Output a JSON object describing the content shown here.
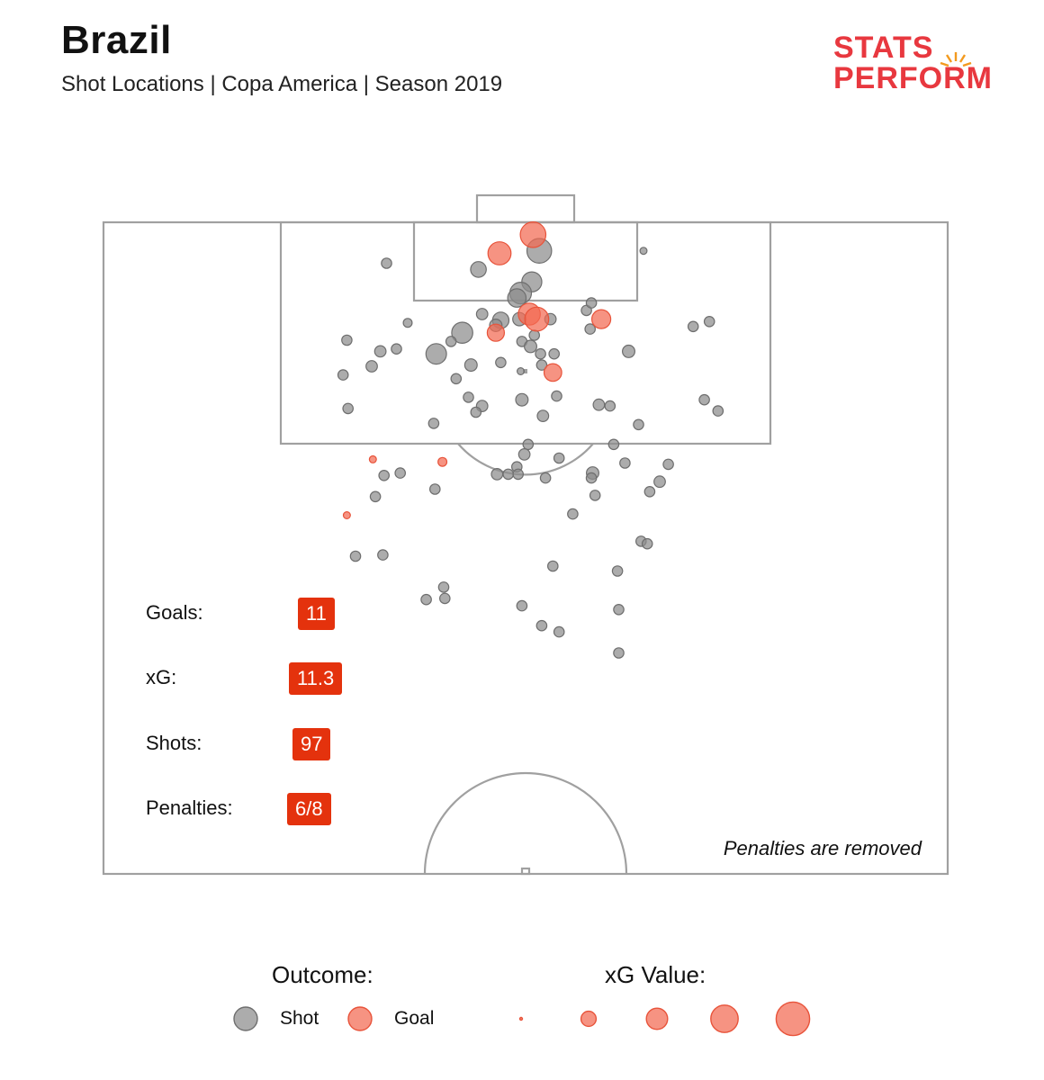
{
  "header": {
    "title": "Brazil",
    "subtitle": "Shot Locations | Copa America | Season 2019"
  },
  "logo": {
    "line1": "STATS",
    "line2": "PERFORM",
    "color": "#e8383f",
    "accent": "#f39a1e"
  },
  "stats": {
    "goals_label": "Goals:",
    "goals_value": "11",
    "xg_label": "xG:",
    "xg_value": "11.3",
    "shots_label": "Shots:",
    "shots_value": "97",
    "penalties_label": "Penalties:",
    "penalties_value": "6/8",
    "badge_color": "#e4320d"
  },
  "note": "Penalties are removed",
  "legend": {
    "outcome_title": "Outcome:",
    "shot_label": "Shot",
    "goal_label": "Goal",
    "xg_title": "xG Value:",
    "xg_sizes": [
      0.01,
      0.1,
      0.2,
      0.35,
      0.5
    ]
  },
  "colors": {
    "shot": "#8c8c8c",
    "goal": "#f26a52",
    "pitch_line": "#a0a0a0"
  },
  "chart_data": {
    "type": "scatter",
    "x_unit": "pitch width 0-68 (left to right)",
    "y_unit": "distance from goal line 0-52.5",
    "series": [
      {
        "name": "Shot",
        "points": [
          {
            "x": 22.8,
            "y": 3.3,
            "xg": 0.03
          },
          {
            "x": 30.2,
            "y": 3.8,
            "xg": 0.09
          },
          {
            "x": 35.1,
            "y": 2.3,
            "xg": 0.26
          },
          {
            "x": 34.5,
            "y": 4.8,
            "xg": 0.16
          },
          {
            "x": 33.6,
            "y": 5.7,
            "xg": 0.19
          },
          {
            "x": 33.3,
            "y": 6.1,
            "xg": 0.13
          },
          {
            "x": 24.5,
            "y": 8.1,
            "xg": 0.02
          },
          {
            "x": 30.5,
            "y": 7.4,
            "xg": 0.04
          },
          {
            "x": 32.0,
            "y": 7.9,
            "xg": 0.1
          },
          {
            "x": 31.6,
            "y": 8.3,
            "xg": 0.05
          },
          {
            "x": 33.5,
            "y": 7.8,
            "xg": 0.06
          },
          {
            "x": 36.0,
            "y": 7.8,
            "xg": 0.04
          },
          {
            "x": 28.9,
            "y": 8.9,
            "xg": 0.18
          },
          {
            "x": 38.9,
            "y": 7.1,
            "xg": 0.03
          },
          {
            "x": 39.2,
            "y": 8.6,
            "xg": 0.03
          },
          {
            "x": 34.7,
            "y": 9.1,
            "xg": 0.03
          },
          {
            "x": 19.6,
            "y": 9.5,
            "xg": 0.03
          },
          {
            "x": 28.0,
            "y": 9.6,
            "xg": 0.03
          },
          {
            "x": 33.7,
            "y": 9.6,
            "xg": 0.03
          },
          {
            "x": 34.4,
            "y": 10.0,
            "xg": 0.05
          },
          {
            "x": 22.3,
            "y": 10.4,
            "xg": 0.04
          },
          {
            "x": 23.6,
            "y": 10.2,
            "xg": 0.03
          },
          {
            "x": 26.8,
            "y": 10.6,
            "xg": 0.17
          },
          {
            "x": 35.2,
            "y": 10.6,
            "xg": 0.03
          },
          {
            "x": 36.3,
            "y": 10.6,
            "xg": 0.03
          },
          {
            "x": 29.6,
            "y": 11.5,
            "xg": 0.05
          },
          {
            "x": 35.3,
            "y": 11.5,
            "xg": 0.03
          },
          {
            "x": 33.6,
            "y": 12.0,
            "xg": 0.01
          },
          {
            "x": 21.6,
            "y": 11.6,
            "xg": 0.04
          },
          {
            "x": 19.3,
            "y": 12.3,
            "xg": 0.03
          },
          {
            "x": 28.4,
            "y": 12.6,
            "xg": 0.03
          },
          {
            "x": 29.4,
            "y": 14.1,
            "xg": 0.03
          },
          {
            "x": 30.5,
            "y": 14.8,
            "xg": 0.04
          },
          {
            "x": 33.7,
            "y": 14.3,
            "xg": 0.05
          },
          {
            "x": 36.5,
            "y": 14.0,
            "xg": 0.03
          },
          {
            "x": 19.7,
            "y": 15.0,
            "xg": 0.03
          },
          {
            "x": 30.0,
            "y": 15.3,
            "xg": 0.03
          },
          {
            "x": 35.4,
            "y": 15.6,
            "xg": 0.04
          },
          {
            "x": 39.9,
            "y": 14.7,
            "xg": 0.04
          },
          {
            "x": 40.8,
            "y": 14.8,
            "xg": 0.03
          },
          {
            "x": 26.6,
            "y": 16.2,
            "xg": 0.03
          },
          {
            "x": 43.1,
            "y": 16.3,
            "xg": 0.03
          },
          {
            "x": 48.4,
            "y": 14.3,
            "xg": 0.03
          },
          {
            "x": 49.5,
            "y": 15.2,
            "xg": 0.03
          },
          {
            "x": 43.5,
            "y": 2.3,
            "xg": 0.01
          },
          {
            "x": 32.0,
            "y": 11.3,
            "xg": 0.03
          },
          {
            "x": 42.3,
            "y": 10.4,
            "xg": 0.05
          },
          {
            "x": 47.5,
            "y": 8.4,
            "xg": 0.03
          },
          {
            "x": 39.3,
            "y": 6.5,
            "xg": 0.03
          },
          {
            "x": 48.8,
            "y": 8.0,
            "xg": 0.03
          },
          {
            "x": 34.2,
            "y": 17.9,
            "xg": 0.03
          },
          {
            "x": 33.9,
            "y": 18.7,
            "xg": 0.04
          },
          {
            "x": 36.7,
            "y": 19.0,
            "xg": 0.03
          },
          {
            "x": 41.1,
            "y": 17.9,
            "xg": 0.03
          },
          {
            "x": 33.3,
            "y": 19.7,
            "xg": 0.03
          },
          {
            "x": 31.7,
            "y": 20.3,
            "xg": 0.04
          },
          {
            "x": 32.6,
            "y": 20.3,
            "xg": 0.03
          },
          {
            "x": 33.4,
            "y": 20.3,
            "xg": 0.03
          },
          {
            "x": 35.6,
            "y": 20.6,
            "xg": 0.03
          },
          {
            "x": 39.4,
            "y": 20.2,
            "xg": 0.05
          },
          {
            "x": 39.3,
            "y": 20.6,
            "xg": 0.03
          },
          {
            "x": 42.0,
            "y": 19.4,
            "xg": 0.03
          },
          {
            "x": 23.9,
            "y": 20.2,
            "xg": 0.03
          },
          {
            "x": 22.6,
            "y": 20.4,
            "xg": 0.03
          },
          {
            "x": 26.7,
            "y": 21.5,
            "xg": 0.03
          },
          {
            "x": 21.9,
            "y": 22.1,
            "xg": 0.03
          },
          {
            "x": 39.6,
            "y": 22.0,
            "xg": 0.03
          },
          {
            "x": 44.0,
            "y": 21.7,
            "xg": 0.03
          },
          {
            "x": 44.8,
            "y": 20.9,
            "xg": 0.04
          },
          {
            "x": 45.5,
            "y": 19.5,
            "xg": 0.03
          },
          {
            "x": 37.8,
            "y": 23.5,
            "xg": 0.03
          },
          {
            "x": 43.3,
            "y": 25.7,
            "xg": 0.03
          },
          {
            "x": 43.8,
            "y": 25.9,
            "xg": 0.03
          },
          {
            "x": 20.3,
            "y": 26.9,
            "xg": 0.03
          },
          {
            "x": 22.5,
            "y": 26.8,
            "xg": 0.03
          },
          {
            "x": 36.2,
            "y": 27.7,
            "xg": 0.03
          },
          {
            "x": 41.4,
            "y": 28.1,
            "xg": 0.03
          },
          {
            "x": 27.4,
            "y": 29.4,
            "xg": 0.03
          },
          {
            "x": 26.0,
            "y": 30.4,
            "xg": 0.03
          },
          {
            "x": 27.5,
            "y": 30.3,
            "xg": 0.03
          },
          {
            "x": 33.7,
            "y": 30.9,
            "xg": 0.03
          },
          {
            "x": 41.5,
            "y": 31.2,
            "xg": 0.03
          },
          {
            "x": 35.3,
            "y": 32.5,
            "xg": 0.03
          },
          {
            "x": 36.7,
            "y": 33.0,
            "xg": 0.03
          },
          {
            "x": 41.5,
            "y": 34.7,
            "xg": 0.03
          }
        ]
      },
      {
        "name": "Goal",
        "points": [
          {
            "x": 34.6,
            "y": 1.0,
            "xg": 0.28
          },
          {
            "x": 31.9,
            "y": 2.5,
            "xg": 0.22
          },
          {
            "x": 34.3,
            "y": 7.4,
            "xg": 0.2
          },
          {
            "x": 34.9,
            "y": 7.8,
            "xg": 0.24
          },
          {
            "x": 40.1,
            "y": 7.8,
            "xg": 0.14
          },
          {
            "x": 31.6,
            "y": 8.9,
            "xg": 0.11
          },
          {
            "x": 36.2,
            "y": 12.1,
            "xg": 0.12
          },
          {
            "x": 27.3,
            "y": 19.3,
            "xg": 0.02
          },
          {
            "x": 21.7,
            "y": 19.1,
            "xg": 0.01
          },
          {
            "x": 19.6,
            "y": 23.6,
            "xg": 0.01
          }
        ]
      }
    ],
    "xlim": [
      0,
      68
    ],
    "ylim": [
      0,
      52.5
    ]
  }
}
